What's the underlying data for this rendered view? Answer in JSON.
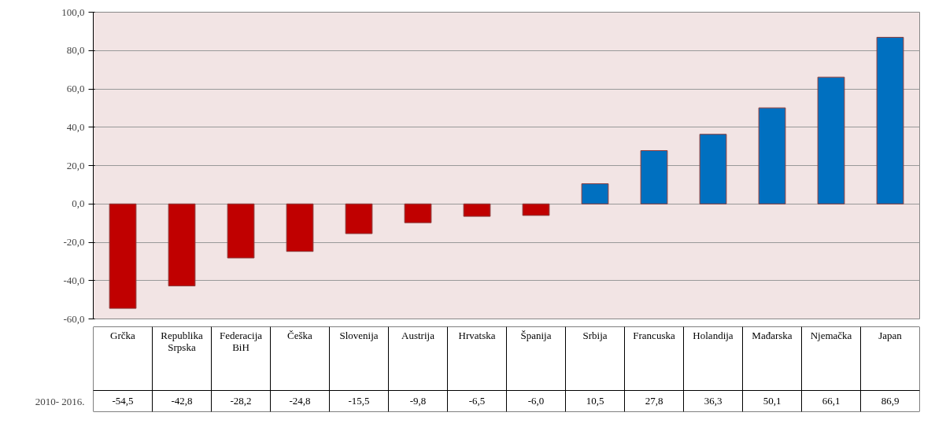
{
  "chart_data": {
    "type": "bar",
    "categories": [
      "Grčka",
      "Republika Srpska",
      "Federacija BiH",
      "Češka",
      "Slovenija",
      "Austrija",
      "Hrvatska",
      "Španija",
      "Srbija",
      "Francuska",
      "Holandija",
      "Mađarska",
      "Njemačka",
      "Japan"
    ],
    "series": [
      {
        "name": "2010- 2016.",
        "colors": [
          "#c00000",
          "#c00000",
          "#c00000",
          "#c00000",
          "#c00000",
          "#c00000",
          "#c00000",
          "#c00000",
          "#0070c0",
          "#0070c0",
          "#0070c0",
          "#0070c0",
          "#0070c0",
          "#0070c0"
        ],
        "values": [
          -54.5,
          -42.8,
          -28.2,
          -24.8,
          -15.5,
          -9.8,
          -6.5,
          -6.0,
          10.5,
          27.8,
          36.3,
          50.1,
          66.1,
          86.9
        ],
        "value_labels": [
          "-54,5",
          "-42,8",
          "-28,2",
          "-24,8",
          "-15,5",
          "-9,8",
          "-6,5",
          "-6,0",
          "10,5",
          "27,8",
          "36,3",
          "50,1",
          "66,1",
          "86,9"
        ]
      }
    ],
    "ylim": [
      -60,
      100
    ],
    "yticks": [
      {
        "value": -60,
        "label": "-60,0"
      },
      {
        "value": -40,
        "label": "-40,0"
      },
      {
        "value": -20,
        "label": "-20,0"
      },
      {
        "value": 0,
        "label": "0,0"
      },
      {
        "value": 20,
        "label": "20,0"
      },
      {
        "value": 40,
        "label": "40,0"
      },
      {
        "value": 60,
        "label": "60,0"
      },
      {
        "value": 80,
        "label": "80,0"
      },
      {
        "value": 100,
        "label": "100,0"
      }
    ],
    "grid": "y"
  }
}
